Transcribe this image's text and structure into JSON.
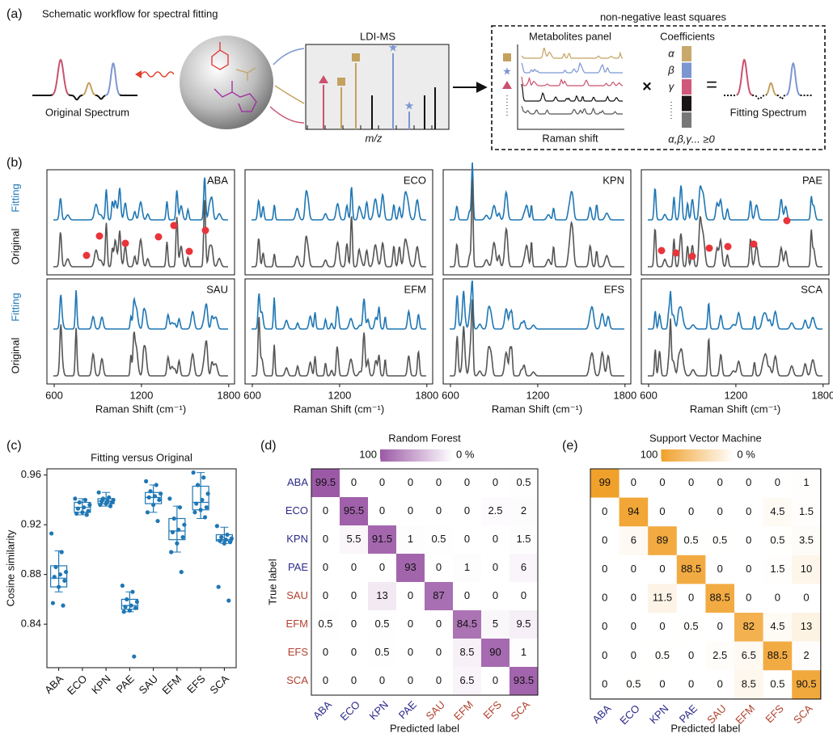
{
  "panel_a": {
    "panel_label": "(a)",
    "title": "Schematic workflow for spectral fitting",
    "original_spectrum": "Original Spectrum",
    "ldi_ms": "LDI-MS",
    "mz": "m/z",
    "nnls": "non-negative least squares",
    "metabolites_panel": "Metabolites panel",
    "raman_shift": "Raman shift",
    "coefficients": "Coefficients",
    "greek": [
      "α",
      "β",
      "γ"
    ],
    "constraint": "α,β,γ... ≥0",
    "fitting_spectrum": "Fitting Spectrum"
  },
  "panel_b": {
    "panel_label": "(b)",
    "fitting": "Fitting",
    "original": "Original",
    "species": [
      "ABA",
      "ECO",
      "KPN",
      "PAE",
      "SAU",
      "EFM",
      "EFS",
      "SCA"
    ],
    "xlabel": "Raman Shift (cm⁻¹)",
    "xlim": [
      550,
      1840
    ],
    "xticks": [
      600,
      1200,
      1800
    ],
    "fitting_color": "#1f77b4",
    "original_color": "#555555"
  },
  "chart_data": [
    {
      "type": "box",
      "panel_label": "(c)",
      "title": "Fitting versus Original",
      "ylabel": "Cosine similarity",
      "color": "#1f77b4",
      "categories": [
        "ABA",
        "ECO",
        "KPN",
        "PAE",
        "SAU",
        "EFM",
        "EFS",
        "SCA"
      ],
      "ylim": [
        0.805,
        0.965
      ],
      "yticks": [
        0.84,
        0.88,
        0.92,
        0.96
      ],
      "boxes": [
        {
          "lo": 0.866,
          "q1": 0.87,
          "med": 0.877,
          "q3": 0.887,
          "hi": 0.899,
          "points": [
            0.913,
            0.898,
            0.886,
            0.882,
            0.88,
            0.878,
            0.875,
            0.87,
            0.857,
            0.855
          ]
        },
        {
          "lo": 0.928,
          "q1": 0.93,
          "med": 0.934,
          "q3": 0.938,
          "hi": 0.941,
          "points": [
            0.941,
            0.94,
            0.938,
            0.936,
            0.934,
            0.933,
            0.931,
            0.93,
            0.929,
            0.928
          ]
        },
        {
          "lo": 0.935,
          "q1": 0.937,
          "med": 0.939,
          "q3": 0.941,
          "hi": 0.946,
          "points": [
            0.946,
            0.942,
            0.941,
            0.94,
            0.939,
            0.939,
            0.938,
            0.937,
            0.936,
            0.935
          ]
        },
        {
          "lo": 0.85,
          "q1": 0.852,
          "med": 0.855,
          "q3": 0.86,
          "hi": 0.866,
          "points": [
            0.871,
            0.866,
            0.86,
            0.858,
            0.855,
            0.854,
            0.853,
            0.851,
            0.85,
            0.814
          ]
        },
        {
          "lo": 0.93,
          "q1": 0.937,
          "med": 0.942,
          "q3": 0.946,
          "hi": 0.952,
          "points": [
            0.955,
            0.952,
            0.947,
            0.945,
            0.943,
            0.942,
            0.94,
            0.936,
            0.93,
            0.923
          ]
        },
        {
          "lo": 0.898,
          "q1": 0.908,
          "med": 0.915,
          "q3": 0.925,
          "hi": 0.935,
          "points": [
            0.941,
            0.934,
            0.925,
            0.92,
            0.916,
            0.914,
            0.91,
            0.905,
            0.898,
            0.882
          ]
        },
        {
          "lo": 0.925,
          "q1": 0.932,
          "med": 0.938,
          "q3": 0.951,
          "hi": 0.962,
          "points": [
            0.962,
            0.958,
            0.952,
            0.945,
            0.94,
            0.937,
            0.934,
            0.932,
            0.93,
            0.926
          ]
        },
        {
          "lo": 0.905,
          "q1": 0.907,
          "med": 0.908,
          "q3": 0.912,
          "hi": 0.918,
          "points": [
            0.919,
            0.912,
            0.91,
            0.909,
            0.908,
            0.907,
            0.906,
            0.905,
            0.87,
            0.859
          ]
        }
      ]
    },
    {
      "type": "heatmap",
      "panel_label": "(d)",
      "title": "Random Forest",
      "color": "#9b59a6",
      "colorbar_ticks": [
        100,
        {
          "value": 0,
          "label": "0 %"
        }
      ],
      "xlabel": "Predicted label",
      "ylabel": "True label",
      "categories": [
        "ABA",
        "ECO",
        "KPN",
        "PAE",
        "SAU",
        "EFM",
        "EFS",
        "SCA"
      ],
      "label_colors": [
        "#2b2a8a",
        "#2b2a8a",
        "#2b2a8a",
        "#2b2a8a",
        "#b0412e",
        "#b0412e",
        "#b0412e",
        "#b0412e"
      ],
      "matrix": [
        [
          99.5,
          0,
          0,
          0,
          0,
          0,
          0,
          0.5
        ],
        [
          0,
          95.5,
          0,
          0,
          0,
          0,
          2.5,
          2
        ],
        [
          0,
          5.5,
          91.5,
          1,
          0.5,
          0,
          0,
          1.5
        ],
        [
          0,
          0,
          0,
          93,
          0,
          1,
          0,
          6
        ],
        [
          0,
          0,
          13,
          0,
          87,
          0,
          0,
          0
        ],
        [
          0.5,
          0,
          0.5,
          0,
          0,
          84.5,
          5,
          9.5
        ],
        [
          0,
          0,
          0.5,
          0,
          0,
          8.5,
          90,
          1
        ],
        [
          0,
          0,
          0,
          0,
          0,
          6.5,
          0,
          93.5
        ]
      ]
    },
    {
      "type": "heatmap",
      "panel_label": "(e)",
      "title": "Support Vector Machine",
      "color": "#f0a02a",
      "colorbar_ticks": [
        100,
        {
          "value": 0,
          "label": "0 %"
        }
      ],
      "xlabel": "Predicted label",
      "categories": [
        "ABA",
        "ECO",
        "KPN",
        "PAE",
        "SAU",
        "EFM",
        "EFS",
        "SCA"
      ],
      "label_colors": [
        "#2b2a8a",
        "#2b2a8a",
        "#2b2a8a",
        "#2b2a8a",
        "#b0412e",
        "#b0412e",
        "#b0412e",
        "#b0412e"
      ],
      "matrix": [
        [
          99,
          0,
          0,
          0,
          0,
          0,
          0,
          1
        ],
        [
          0,
          94,
          0,
          0,
          0,
          0,
          4.5,
          1.5
        ],
        [
          0,
          6,
          89,
          0.5,
          0.5,
          0,
          0.5,
          3.5
        ],
        [
          0,
          0,
          0,
          88.5,
          0,
          0,
          1.5,
          10
        ],
        [
          0,
          0,
          11.5,
          0,
          88.5,
          0,
          0,
          0
        ],
        [
          0,
          0,
          0,
          0.5,
          0,
          82,
          4.5,
          13
        ],
        [
          0,
          0,
          0.5,
          0,
          2.5,
          6.5,
          88.5,
          2
        ],
        [
          0,
          0.5,
          0,
          0,
          0,
          8.5,
          0.5,
          90.5
        ]
      ]
    }
  ]
}
